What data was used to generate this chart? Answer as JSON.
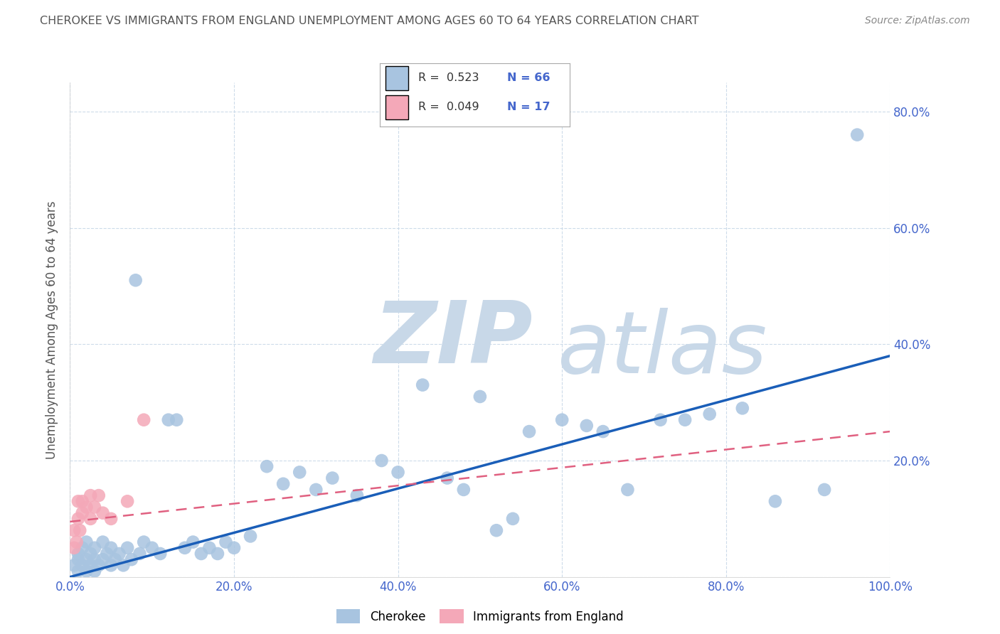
{
  "title": "CHEROKEE VS IMMIGRANTS FROM ENGLAND UNEMPLOYMENT AMONG AGES 60 TO 64 YEARS CORRELATION CHART",
  "source": "Source: ZipAtlas.com",
  "ylabel_label": "Unemployment Among Ages 60 to 64 years",
  "legend_cherokee": "Cherokee",
  "legend_england": "Immigrants from England",
  "r_cherokee": "0.523",
  "n_cherokee": "66",
  "r_england": "0.049",
  "n_england": "17",
  "xlim": [
    0.0,
    1.0
  ],
  "ylim": [
    0.0,
    0.85
  ],
  "xticks": [
    0.0,
    0.2,
    0.4,
    0.6,
    0.8,
    1.0
  ],
  "yticks": [
    0.0,
    0.2,
    0.4,
    0.6,
    0.8
  ],
  "color_cherokee": "#a8c4e0",
  "color_england": "#f4a8b8",
  "color_line_cherokee": "#1a5eb8",
  "color_line_england": "#e06080",
  "background_color": "#ffffff",
  "watermark_zip": "ZIP",
  "watermark_atlas": "atlas",
  "watermark_color_zip": "#c8d8e8",
  "watermark_color_atlas": "#c8d8e8",
  "tick_color": "#4466cc",
  "grid_color": "#c8d8e8",
  "title_color": "#555555",
  "ylabel_color": "#555555",
  "cherokee_x": [
    0.005,
    0.01,
    0.01,
    0.01,
    0.015,
    0.015,
    0.02,
    0.02,
    0.02,
    0.025,
    0.025,
    0.03,
    0.03,
    0.03,
    0.035,
    0.04,
    0.04,
    0.045,
    0.05,
    0.05,
    0.055,
    0.06,
    0.065,
    0.07,
    0.075,
    0.08,
    0.085,
    0.09,
    0.1,
    0.11,
    0.12,
    0.13,
    0.14,
    0.15,
    0.16,
    0.17,
    0.18,
    0.19,
    0.2,
    0.22,
    0.24,
    0.26,
    0.28,
    0.3,
    0.32,
    0.35,
    0.38,
    0.4,
    0.43,
    0.46,
    0.48,
    0.5,
    0.52,
    0.54,
    0.56,
    0.6,
    0.63,
    0.65,
    0.68,
    0.72,
    0.75,
    0.78,
    0.82,
    0.86,
    0.92,
    0.96
  ],
  "cherokee_y": [
    0.02,
    0.01,
    0.03,
    0.04,
    0.02,
    0.05,
    0.01,
    0.03,
    0.06,
    0.02,
    0.04,
    0.01,
    0.03,
    0.05,
    0.02,
    0.03,
    0.06,
    0.04,
    0.02,
    0.05,
    0.03,
    0.04,
    0.02,
    0.05,
    0.03,
    0.51,
    0.04,
    0.06,
    0.05,
    0.04,
    0.27,
    0.27,
    0.05,
    0.06,
    0.04,
    0.05,
    0.04,
    0.06,
    0.05,
    0.07,
    0.19,
    0.16,
    0.18,
    0.15,
    0.17,
    0.14,
    0.2,
    0.18,
    0.33,
    0.17,
    0.15,
    0.31,
    0.08,
    0.1,
    0.25,
    0.27,
    0.26,
    0.25,
    0.15,
    0.27,
    0.27,
    0.28,
    0.29,
    0.13,
    0.15,
    0.76
  ],
  "england_x": [
    0.005,
    0.005,
    0.008,
    0.01,
    0.01,
    0.012,
    0.015,
    0.015,
    0.02,
    0.025,
    0.025,
    0.03,
    0.035,
    0.04,
    0.05,
    0.07,
    0.09
  ],
  "england_y": [
    0.05,
    0.08,
    0.06,
    0.1,
    0.13,
    0.08,
    0.11,
    0.13,
    0.12,
    0.14,
    0.1,
    0.12,
    0.14,
    0.11,
    0.1,
    0.13,
    0.27
  ],
  "line_cherokee_x0": 0.0,
  "line_cherokee_x1": 1.0,
  "line_cherokee_y0": 0.0,
  "line_cherokee_y1": 0.38,
  "line_england_x0": 0.0,
  "line_england_x1": 1.0,
  "line_england_y0": 0.095,
  "line_england_y1": 0.25
}
